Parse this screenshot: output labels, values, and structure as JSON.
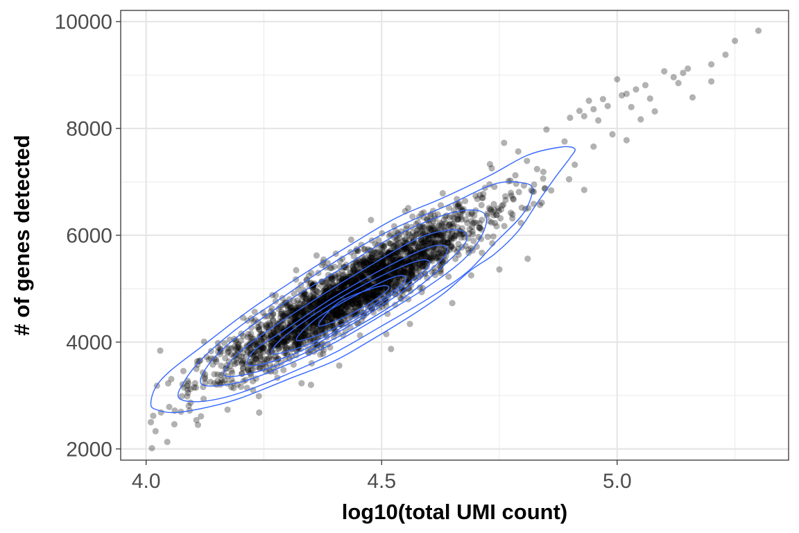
{
  "chart_data": {
    "type": "scatter",
    "title": "",
    "xlabel": "log10(total UMI count)",
    "ylabel": "# of genes detected",
    "xlim": [
      3.946,
      5.364
    ],
    "ylim": [
      1790,
      10210
    ],
    "x_ticks": [
      4.0,
      4.5,
      5.0
    ],
    "x_tick_labels": [
      "4.0",
      "4.5",
      "5.0"
    ],
    "y_ticks": [
      2000,
      4000,
      6000,
      8000,
      10000
    ],
    "y_tick_labels": [
      "2000",
      "4000",
      "6000",
      "8000",
      "10000"
    ],
    "grid": true,
    "legend": "none",
    "point_color": "#000000",
    "point_opacity": 0.3,
    "contour_color": "#3366FF",
    "density_center": {
      "x": 4.43,
      "y": 4900
    },
    "trend": {
      "slope": 5160,
      "intercept": -17960,
      "y_spread_sd": 300,
      "x_sd": 0.15
    },
    "cells": [
      {
        "x": 4.01,
        "y": 2500
      },
      {
        "x": 4.02,
        "y": 2330
      },
      {
        "x": 4.045,
        "y": 2130
      },
      {
        "x": 4.015,
        "y": 2620
      },
      {
        "x": 4.03,
        "y": 3840
      },
      {
        "x": 4.06,
        "y": 2460
      },
      {
        "x": 4.11,
        "y": 2450
      },
      {
        "x": 4.24,
        "y": 2680
      },
      {
        "x": 4.33,
        "y": 3230
      },
      {
        "x": 4.35,
        "y": 3200
      },
      {
        "x": 4.41,
        "y": 3560
      },
      {
        "x": 4.52,
        "y": 3870
      },
      {
        "x": 4.51,
        "y": 4150
      },
      {
        "x": 4.56,
        "y": 4340
      },
      {
        "x": 4.65,
        "y": 4730
      },
      {
        "x": 4.55,
        "y": 6450
      },
      {
        "x": 4.6,
        "y": 6240
      },
      {
        "x": 4.75,
        "y": 5360
      },
      {
        "x": 4.81,
        "y": 5560
      },
      {
        "x": 4.69,
        "y": 5250
      },
      {
        "x": 4.73,
        "y": 7330
      },
      {
        "x": 4.76,
        "y": 7730
      },
      {
        "x": 4.79,
        "y": 7570
      },
      {
        "x": 4.85,
        "y": 7980
      },
      {
        "x": 4.9,
        "y": 8200
      },
      {
        "x": 4.92,
        "y": 8330
      },
      {
        "x": 4.93,
        "y": 8230
      },
      {
        "x": 4.94,
        "y": 8520
      },
      {
        "x": 4.95,
        "y": 8360
      },
      {
        "x": 4.96,
        "y": 8150
      },
      {
        "x": 4.97,
        "y": 8550
      },
      {
        "x": 4.98,
        "y": 8420
      },
      {
        "x": 4.99,
        "y": 7890
      },
      {
        "x": 5.0,
        "y": 8920
      },
      {
        "x": 5.01,
        "y": 8620
      },
      {
        "x": 5.02,
        "y": 8650
      },
      {
        "x": 5.03,
        "y": 8400
      },
      {
        "x": 5.04,
        "y": 8730
      },
      {
        "x": 5.05,
        "y": 8170
      },
      {
        "x": 5.06,
        "y": 8810
      },
      {
        "x": 5.07,
        "y": 8560
      },
      {
        "x": 5.08,
        "y": 8320
      },
      {
        "x": 5.1,
        "y": 9070
      },
      {
        "x": 5.12,
        "y": 8960
      },
      {
        "x": 5.13,
        "y": 8850
      },
      {
        "x": 5.14,
        "y": 9040
      },
      {
        "x": 5.15,
        "y": 9120
      },
      {
        "x": 5.16,
        "y": 8580
      },
      {
        "x": 5.2,
        "y": 9200
      },
      {
        "x": 5.2,
        "y": 8880
      },
      {
        "x": 5.23,
        "y": 9380
      },
      {
        "x": 5.25,
        "y": 9640
      },
      {
        "x": 5.3,
        "y": 9830
      },
      {
        "x": 4.95,
        "y": 7660
      },
      {
        "x": 4.91,
        "y": 7320
      },
      {
        "x": 4.86,
        "y": 6840
      },
      {
        "x": 4.84,
        "y": 6610
      },
      {
        "x": 4.93,
        "y": 6850
      },
      {
        "x": 5.02,
        "y": 7780
      },
      {
        "x": 4.83,
        "y": 7240
      }
    ],
    "contour_levels": [
      {
        "level": 1,
        "points": [
          [
            4.01,
            2850
          ],
          [
            4.02,
            2740
          ],
          [
            4.06,
            2680
          ],
          [
            4.13,
            2780
          ],
          [
            4.2,
            2950
          ],
          [
            4.3,
            3300
          ],
          [
            4.4,
            3650
          ],
          [
            4.48,
            4050
          ],
          [
            4.56,
            4480
          ],
          [
            4.63,
            4900
          ],
          [
            4.69,
            5350
          ],
          [
            4.74,
            5650
          ],
          [
            4.79,
            6080
          ],
          [
            4.83,
            6600
          ],
          [
            4.87,
            7100
          ],
          [
            4.9,
            7450
          ],
          [
            4.91,
            7620
          ],
          [
            4.88,
            7650
          ],
          [
            4.81,
            7500
          ],
          [
            4.73,
            7120
          ],
          [
            4.63,
            6700
          ],
          [
            4.53,
            6320
          ],
          [
            4.43,
            5800
          ],
          [
            4.33,
            5250
          ],
          [
            4.22,
            4600
          ],
          [
            4.12,
            3930
          ],
          [
            4.05,
            3450
          ],
          [
            4.02,
            3150
          ]
        ]
      },
      {
        "level": 2,
        "points": [
          [
            4.07,
            2950
          ],
          [
            4.12,
            2890
          ],
          [
            4.2,
            3050
          ],
          [
            4.3,
            3400
          ],
          [
            4.4,
            3800
          ],
          [
            4.5,
            4300
          ],
          [
            4.6,
            4820
          ],
          [
            4.68,
            5300
          ],
          [
            4.74,
            5850
          ],
          [
            4.8,
            6400
          ],
          [
            4.82,
            6850
          ],
          [
            4.8,
            6980
          ],
          [
            4.74,
            6960
          ],
          [
            4.64,
            6560
          ],
          [
            4.52,
            6100
          ],
          [
            4.4,
            5500
          ],
          [
            4.3,
            4900
          ],
          [
            4.2,
            4300
          ],
          [
            4.12,
            3700
          ],
          [
            4.08,
            3250
          ]
        ]
      },
      {
        "level": 3,
        "points": [
          [
            4.12,
            3200
          ],
          [
            4.2,
            3250
          ],
          [
            4.3,
            3580
          ],
          [
            4.4,
            3990
          ],
          [
            4.5,
            4500
          ],
          [
            4.6,
            5050
          ],
          [
            4.68,
            5600
          ],
          [
            4.72,
            6150
          ],
          [
            4.71,
            6450
          ],
          [
            4.64,
            6400
          ],
          [
            4.52,
            5950
          ],
          [
            4.4,
            5300
          ],
          [
            4.28,
            4650
          ],
          [
            4.18,
            4000
          ],
          [
            4.13,
            3550
          ]
        ]
      },
      {
        "level": 4,
        "points": [
          [
            4.17,
            3360
          ],
          [
            4.25,
            3480
          ],
          [
            4.35,
            3850
          ],
          [
            4.45,
            4300
          ],
          [
            4.55,
            4850
          ],
          [
            4.63,
            5420
          ],
          [
            4.68,
            5900
          ],
          [
            4.66,
            6100
          ],
          [
            4.58,
            5950
          ],
          [
            4.46,
            5350
          ],
          [
            4.35,
            4750
          ],
          [
            4.24,
            4100
          ],
          [
            4.18,
            3650
          ]
        ]
      },
      {
        "level": 5,
        "points": [
          [
            4.22,
            3560
          ],
          [
            4.3,
            3730
          ],
          [
            4.4,
            4150
          ],
          [
            4.5,
            4680
          ],
          [
            4.59,
            5250
          ],
          [
            4.64,
            5700
          ],
          [
            4.61,
            5800
          ],
          [
            4.52,
            5450
          ],
          [
            4.4,
            4850
          ],
          [
            4.29,
            4200
          ],
          [
            4.23,
            3850
          ]
        ]
      },
      {
        "level": 6,
        "points": [
          [
            4.27,
            3780
          ],
          [
            4.35,
            3980
          ],
          [
            4.45,
            4450
          ],
          [
            4.54,
            5000
          ],
          [
            4.6,
            5420
          ],
          [
            4.58,
            5530
          ],
          [
            4.49,
            5200
          ],
          [
            4.38,
            4650
          ],
          [
            4.29,
            4080
          ]
        ]
      },
      {
        "level": 7,
        "points": [
          [
            4.32,
            4030
          ],
          [
            4.4,
            4260
          ],
          [
            4.49,
            4740
          ],
          [
            4.55,
            5150
          ],
          [
            4.53,
            5230
          ],
          [
            4.45,
            4900
          ],
          [
            4.36,
            4430
          ]
        ]
      },
      {
        "level": 8,
        "points": [
          [
            4.37,
            4300
          ],
          [
            4.44,
            4550
          ],
          [
            4.51,
            4950
          ],
          [
            4.5,
            5050
          ],
          [
            4.42,
            4800
          ],
          [
            4.38,
            4500
          ]
        ]
      }
    ]
  }
}
